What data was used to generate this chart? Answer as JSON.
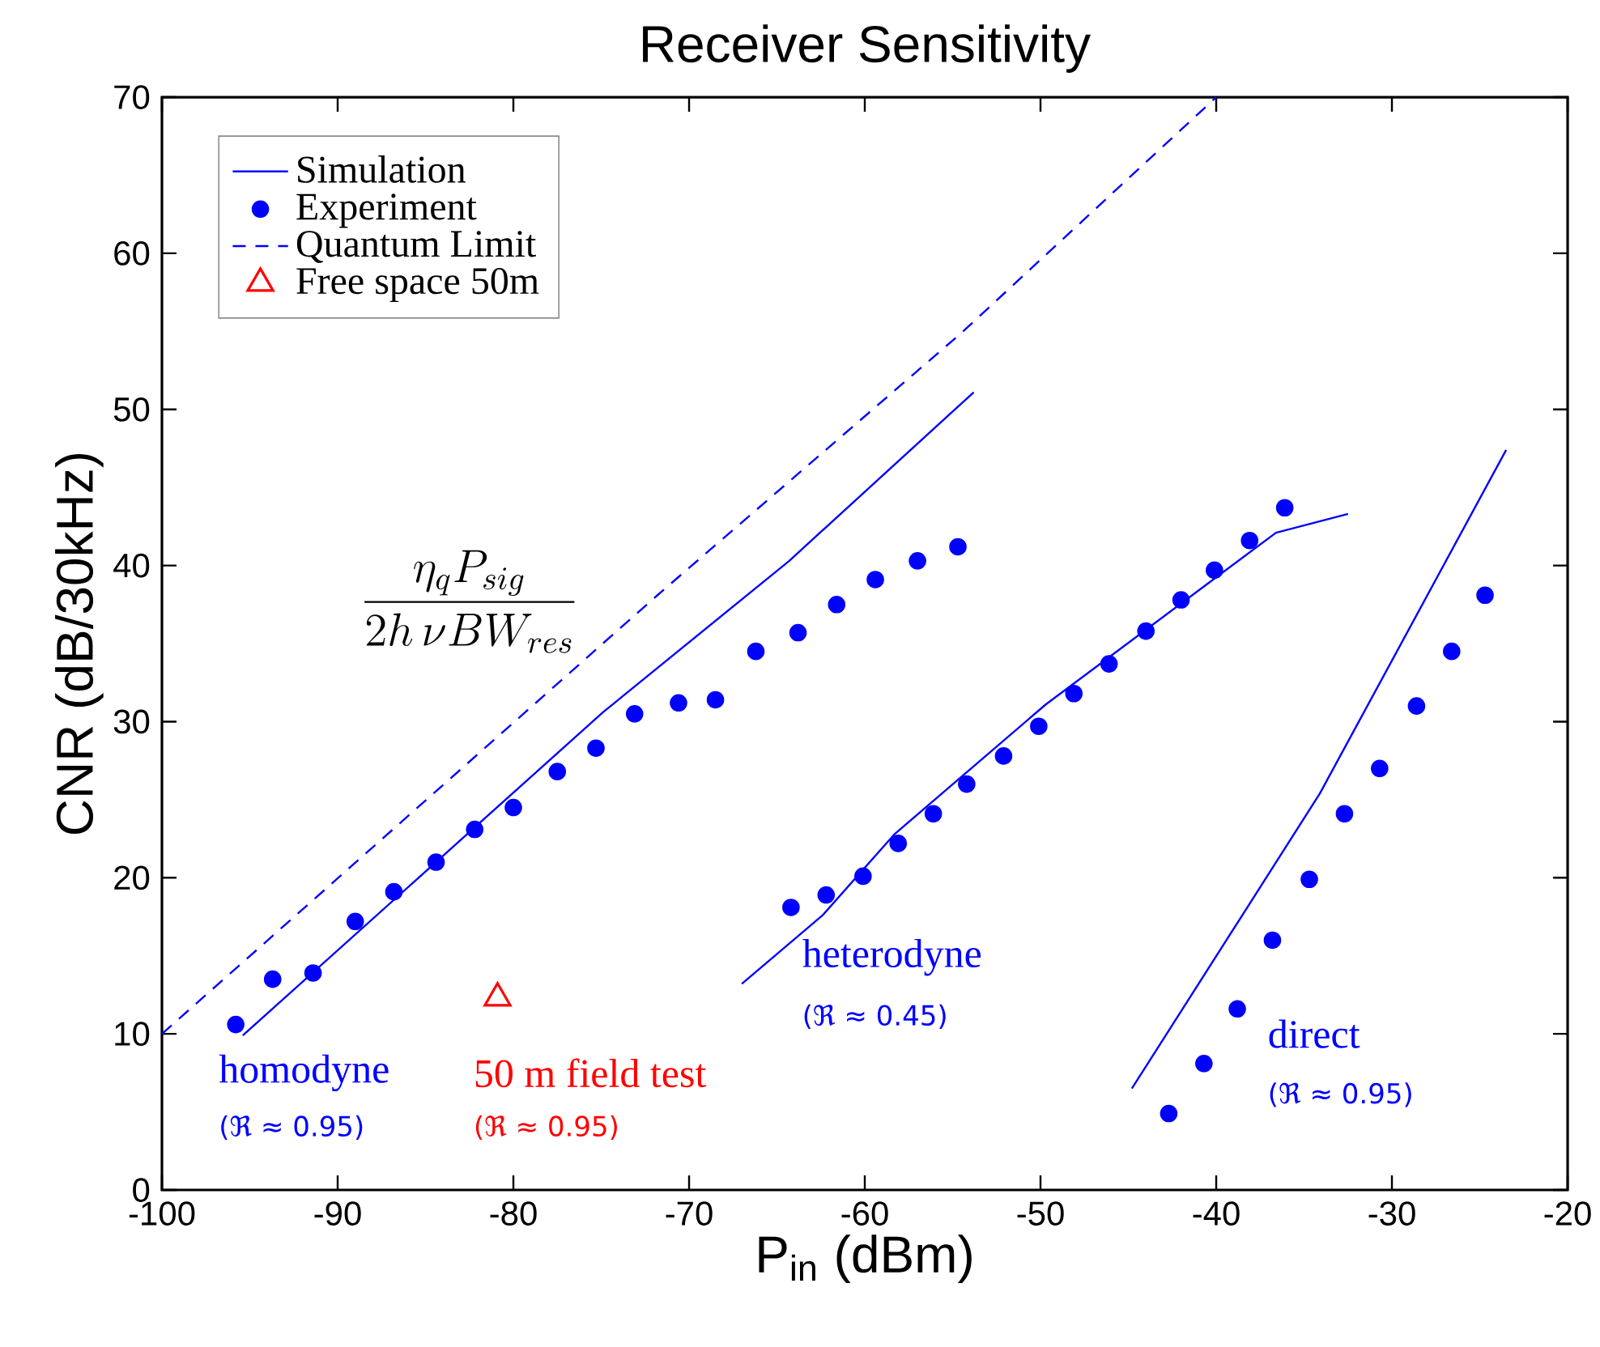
{
  "chart_data": {
    "type": "line",
    "title": "Receiver Sensitivity",
    "xlabel": "P$_{in}$ (dBm)",
    "ylabel": "CNR (dB/30kHz)",
    "xlim": [
      -100,
      -20
    ],
    "xticks": [
      -100,
      -90,
      -80,
      -70,
      -60,
      -50,
      -40,
      -30,
      -20
    ],
    "ylim": [
      0,
      70
    ],
    "yticks": [
      0,
      10,
      20,
      30,
      40,
      50,
      60,
      70
    ],
    "legend": "top left",
    "series": [
      {
        "name": "Simulation",
        "color": "#0000ff",
        "x": [
          -95.4,
          -74.9,
          -64.3,
          -53.8
        ],
        "values": [
          9.9,
          30.6,
          40.3,
          51.1
        ]
      },
      {
        "name": "Experiment",
        "type": "scatter",
        "marker": "circle",
        "color": "#0000ff",
        "x": [
          -95.8,
          -93.7,
          -91.4,
          -89.0,
          -86.8,
          -84.4,
          -82.2,
          -80.0,
          -77.5,
          -75.3,
          -73.1,
          -70.6,
          -68.5,
          -66.2,
          -63.8,
          -61.6,
          -59.4,
          -57.0,
          -54.7
        ],
        "values": [
          10.6,
          13.5,
          13.9,
          17.2,
          19.1,
          21.0,
          23.1,
          24.5,
          26.8,
          28.3,
          30.5,
          31.2,
          31.4,
          34.5,
          35.7,
          37.5,
          39.1,
          40.3,
          41.2
        ]
      },
      {
        "name": "Quantum Limit",
        "line_style": "dashed",
        "color": "#0000ff",
        "x": [
          -100,
          -71.8,
          -54.5,
          -40.0
        ],
        "values": [
          10.0,
          38.1,
          54.9,
          70.0
        ]
      },
      {
        "name": "Free space 50m",
        "type": "scatter",
        "marker": "triangle",
        "color": "#ff0000",
        "x": [
          -80.9
        ],
        "values": [
          12.3
        ]
      },
      {
        "color": "#0000ff",
        "x": [
          -67.0,
          -62.4,
          -58.3,
          -49.7,
          -36.6,
          -32.5
        ],
        "values": [
          13.2,
          17.6,
          22.8,
          31.1,
          42.1,
          43.3
        ]
      },
      {
        "type": "scatter",
        "marker": "circle",
        "color": "#0000ff",
        "x": [
          -64.2,
          -62.2,
          -60.1,
          -58.1,
          -56.1,
          -54.2,
          -52.1,
          -50.1,
          -48.1,
          -46.1,
          -44.0,
          -42.0,
          -40.1,
          -38.1,
          -36.1
        ],
        "values": [
          18.1,
          18.9,
          20.1,
          22.2,
          24.1,
          26.0,
          27.8,
          29.7,
          31.8,
          33.7,
          35.8,
          37.8,
          39.7,
          41.6,
          43.7
        ]
      },
      {
        "color": "#0000ff",
        "x": [
          -44.8,
          -34.1,
          -23.5
        ],
        "values": [
          6.5,
          25.4,
          47.4
        ]
      },
      {
        "type": "scatter",
        "marker": "circle",
        "color": "#0000ff",
        "x": [
          -42.7,
          -40.7,
          -38.8,
          -36.8,
          -34.7,
          -32.7,
          -30.7,
          -28.6,
          -26.6,
          -24.7
        ],
        "values": [
          4.9,
          8.1,
          11.6,
          16.0,
          19.9,
          24.1,
          27.0,
          31.0,
          34.5,
          38.1
        ]
      }
    ],
    "annotations": [
      "homodyne",
      "(ℜ ≈ 0.95)",
      "50 m field test",
      "(ℜ ≈ 0.95)",
      "heterodyne",
      "(ℜ ≈ 0.45)",
      "direct",
      "(ℜ ≈ 0.95)",
      "\\frac{\\eta_q P_{sig}}{2h\\,\\nu BW_{res}}"
    ]
  }
}
